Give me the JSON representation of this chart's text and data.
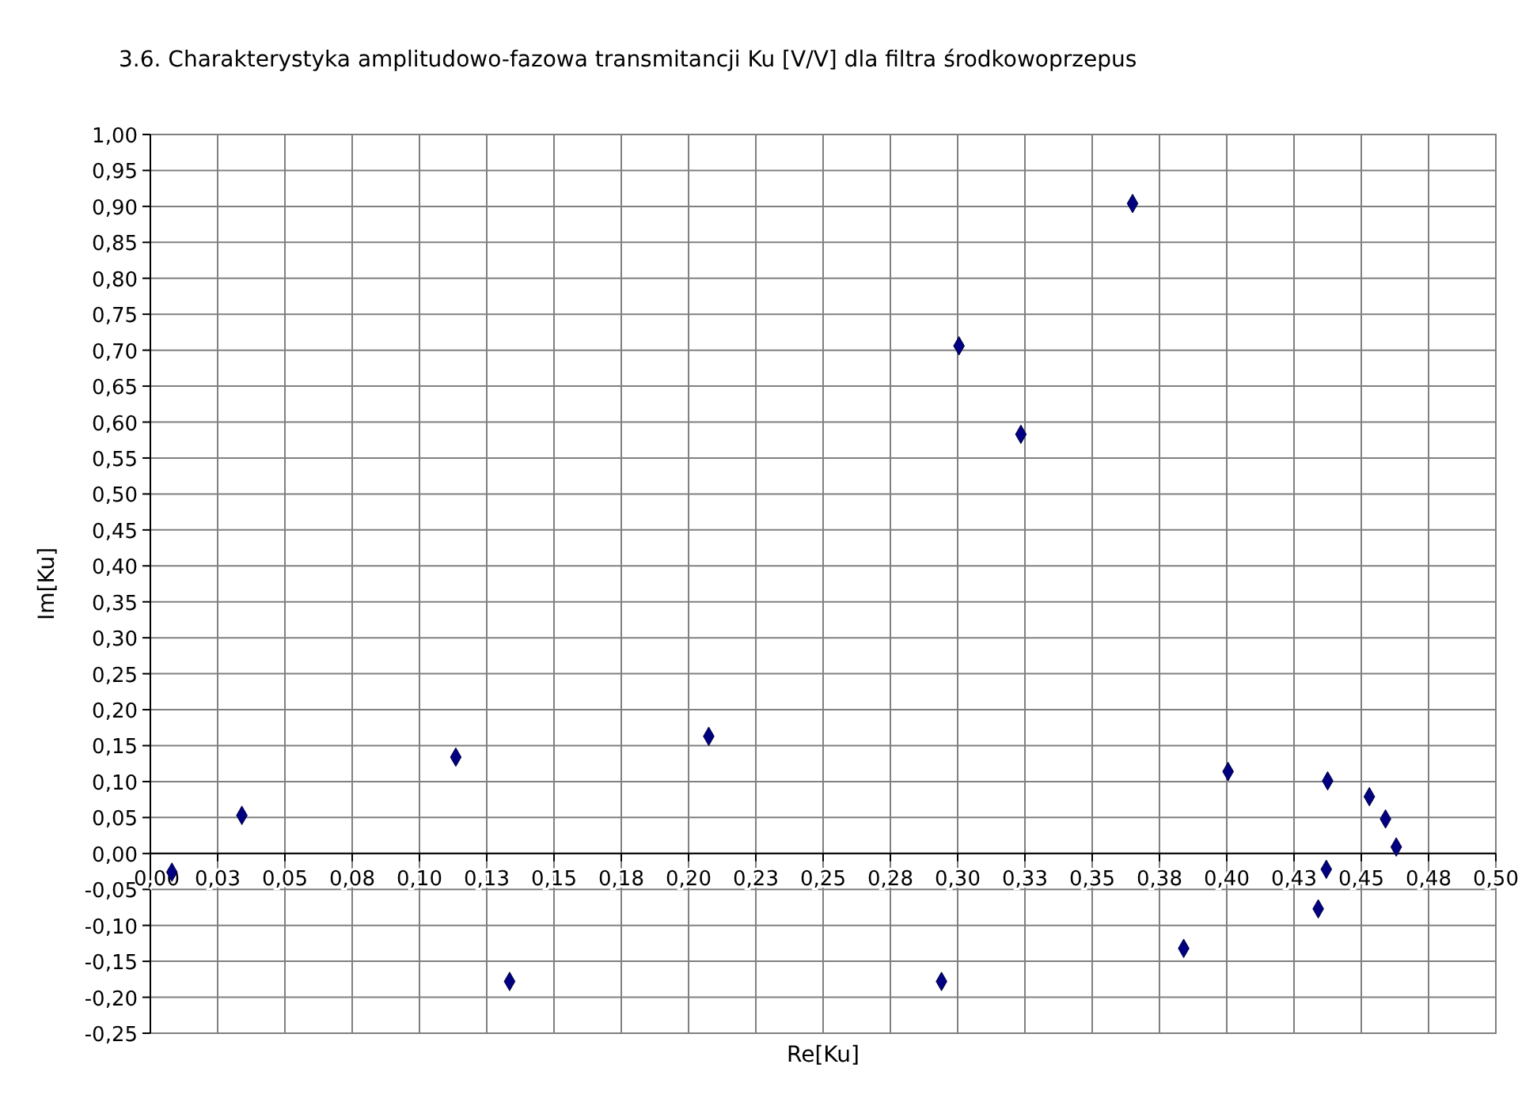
{
  "chart_data": {
    "type": "scatter",
    "title": "3.6. Charakterystyka amplitudowo-fazowa transmitancji Ku [V/V] dla filtra środkowoprzepus",
    "xlabel": "Re[Ku]",
    "ylabel": "Im[Ku]",
    "x": [
      0.008,
      0.034,
      0.1135,
      0.1335,
      0.2075,
      0.294,
      0.3005,
      0.3235,
      0.365,
      0.384,
      0.4005,
      0.434,
      0.437,
      0.4375,
      0.453,
      0.459,
      0.463
    ],
    "series": [
      {
        "color": "#000080",
        "values": [
          -0.026,
          0.053,
          0.134,
          -0.178,
          0.163,
          -0.178,
          0.706,
          0.583,
          0.904,
          -0.132,
          0.114,
          -0.077,
          -0.022,
          0.101,
          0.079,
          0.048,
          0.009
        ]
      }
    ],
    "xlim": [
      0,
      0.5
    ],
    "xticks": [
      {
        "value": 0,
        "label": "0,00"
      },
      {
        "value": 0.025,
        "label": "0,03"
      },
      {
        "value": 0.05,
        "label": "0,05"
      },
      {
        "value": 0.075,
        "label": "0,08"
      },
      {
        "value": 0.1,
        "label": "0,10"
      },
      {
        "value": 0.125,
        "label": "0,13"
      },
      {
        "value": 0.15,
        "label": "0,15"
      },
      {
        "value": 0.175,
        "label": "0,18"
      },
      {
        "value": 0.2,
        "label": "0,20"
      },
      {
        "value": 0.225,
        "label": "0,23"
      },
      {
        "value": 0.25,
        "label": "0,25"
      },
      {
        "value": 0.275,
        "label": "0,28"
      },
      {
        "value": 0.3,
        "label": "0,30"
      },
      {
        "value": 0.325,
        "label": "0,33"
      },
      {
        "value": 0.35,
        "label": "0,35"
      },
      {
        "value": 0.375,
        "label": "0,38"
      },
      {
        "value": 0.4,
        "label": "0,40"
      },
      {
        "value": 0.425,
        "label": "0,43"
      },
      {
        "value": 0.45,
        "label": "0,45"
      },
      {
        "value": 0.475,
        "label": "0,48"
      },
      {
        "value": 0.5,
        "label": "0,50"
      }
    ],
    "ylim": [
      -0.25,
      1
    ],
    "yticks": [
      {
        "value": -0.25,
        "label": "-0,25"
      },
      {
        "value": -0.2,
        "label": "-0,20"
      },
      {
        "value": -0.15,
        "label": "-0,15"
      },
      {
        "value": -0.1,
        "label": "-0,10"
      },
      {
        "value": -0.05,
        "label": "-0,05"
      },
      {
        "value": 0,
        "label": "0,00"
      },
      {
        "value": 0.05,
        "label": "0,05"
      },
      {
        "value": 0.1,
        "label": "0,10"
      },
      {
        "value": 0.15,
        "label": "0,15"
      },
      {
        "value": 0.2,
        "label": "0,20"
      },
      {
        "value": 0.25,
        "label": "0,25"
      },
      {
        "value": 0.3,
        "label": "0,30"
      },
      {
        "value": 0.35,
        "label": "0,35"
      },
      {
        "value": 0.4,
        "label": "0,40"
      },
      {
        "value": 0.45,
        "label": "0,45"
      },
      {
        "value": 0.5,
        "label": "0,50"
      },
      {
        "value": 0.55,
        "label": "0,55"
      },
      {
        "value": 0.6,
        "label": "0,60"
      },
      {
        "value": 0.65,
        "label": "0,65"
      },
      {
        "value": 0.7,
        "label": "0,70"
      },
      {
        "value": 0.75,
        "label": "0,75"
      },
      {
        "value": 0.8,
        "label": "0,80"
      },
      {
        "value": 0.85,
        "label": "0,85"
      },
      {
        "value": 0.9,
        "label": "0,90"
      },
      {
        "value": 0.95,
        "label": "0,95"
      },
      {
        "value": 1,
        "label": "1,00"
      }
    ],
    "grid": true,
    "marker": "diamond"
  }
}
